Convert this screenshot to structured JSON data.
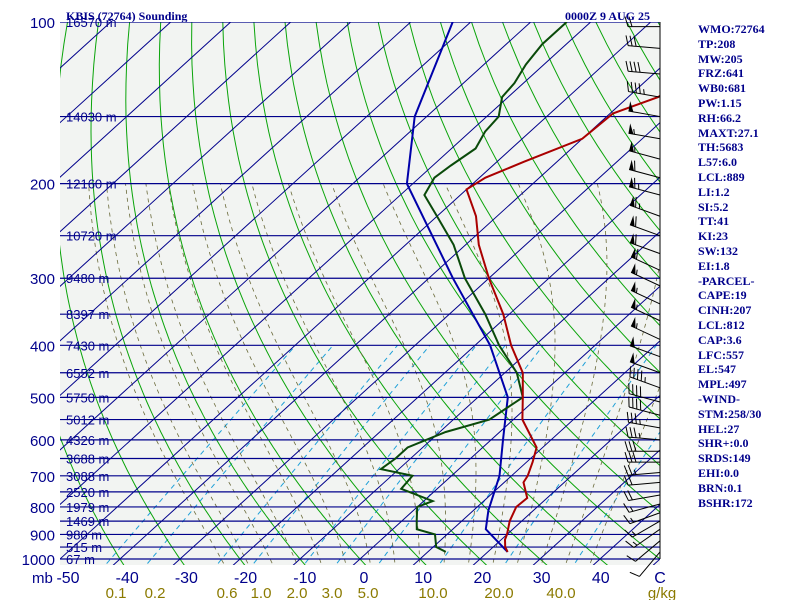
{
  "header": {
    "station": "KBIS (72764) Sounding",
    "time": "0000Z  9 AUG 25"
  },
  "indices": [
    "WMO:72764",
    "TP:208",
    "MW:205",
    "FRZ:641",
    "WB0:681",
    "PW:1.15",
    "RH:66.2",
    "MAXT:27.1",
    "TH:5683",
    "L57:6.0",
    "LCL:889",
    "LI:1.2",
    "SI:5.2",
    "TT:41",
    "KI:23",
    "SW:132",
    "EI:1.8",
    "-PARCEL-",
    "CAPE:19",
    "CINH:207",
    "LCL:812",
    "CAP:3.6",
    "LFC:557",
    "EL:547",
    "MPL:497",
    "-WIND-",
    "STM:258/30",
    "HEL:27",
    "SHR+:0.0",
    "SRDS:149",
    "EHI:0.0",
    "BRN:0.1",
    "BSHR:172"
  ],
  "colors": {
    "background": "#f2f4f2",
    "isobar": "#00008b",
    "isotherm": "#00008b",
    "dry_adiabat": "#0aa40a",
    "moist_adiabat": "#6a6a3a",
    "mixing_ratio": "#1fa0d8",
    "temperature": "#aa0000",
    "dewpoint": "#0a4a0a",
    "parcel": "#0000aa",
    "label_blue": "#00008b",
    "label_gold": "#8b7a00"
  },
  "chart_data": {
    "type": "skew-t",
    "ylabel": "mb",
    "xlabel": "",
    "y_scale": "log",
    "ylim": [
      1000,
      100
    ],
    "xlim": [
      -50,
      50
    ],
    "pressure_ticks": [
      100,
      200,
      300,
      400,
      500,
      600,
      700,
      800,
      900,
      1000
    ],
    "temperature_ticks": [
      "-50",
      "-40",
      "-30",
      "-20",
      "-10",
      "0",
      "10",
      "20",
      "30",
      "40",
      "C"
    ],
    "mixing_ratio_ticks": [
      "0.1",
      "0.2",
      "0.6",
      "1.0",
      "2.0",
      "3.0",
      "5.0",
      "10.0",
      "20.0",
      "40.0",
      "g/kg"
    ],
    "height_labels": [
      {
        "p": 100,
        "label": "16570 m"
      },
      {
        "p": 150,
        "label": "14030 m"
      },
      {
        "p": 200,
        "label": "12160 m"
      },
      {
        "p": 250,
        "label": "10720 m"
      },
      {
        "p": 300,
        "label": "9480 m"
      },
      {
        "p": 350,
        "label": "8397 m"
      },
      {
        "p": 400,
        "label": "7430 m"
      },
      {
        "p": 450,
        "label": "6552 m"
      },
      {
        "p": 500,
        "label": "5750 m"
      },
      {
        "p": 550,
        "label": "5012 m"
      },
      {
        "p": 600,
        "label": "4326 m"
      },
      {
        "p": 650,
        "label": "3688 m"
      },
      {
        "p": 700,
        "label": "3088 m"
      },
      {
        "p": 750,
        "label": "2520 m"
      },
      {
        "p": 800,
        "label": "1979 m"
      },
      {
        "p": 850,
        "label": "1469 m"
      },
      {
        "p": 900,
        "label": "980 m"
      },
      {
        "p": 950,
        "label": "515 m"
      },
      {
        "p": 1000,
        "label": "67 m"
      }
    ],
    "temperature_profile": [
      [
        970,
        23.3
      ],
      [
        950,
        22.0
      ],
      [
        920,
        20.6
      ],
      [
        900,
        20.0
      ],
      [
        850,
        18.0
      ],
      [
        800,
        16.5
      ],
      [
        770,
        16.7
      ],
      [
        720,
        13.2
      ],
      [
        700,
        12.7
      ],
      [
        660,
        11.0
      ],
      [
        620,
        9.0
      ],
      [
        550,
        1.5
      ],
      [
        500,
        -2.5
      ],
      [
        450,
        -7.0
      ],
      [
        400,
        -14.0
      ],
      [
        350,
        -21.0
      ],
      [
        300,
        -30.0
      ],
      [
        260,
        -37.8
      ],
      [
        230,
        -43.5
      ],
      [
        205,
        -50.0
      ],
      [
        195,
        -49.0
      ],
      [
        182,
        -45.5
      ],
      [
        165,
        -40.0
      ],
      [
        148,
        -39.5
      ],
      [
        138,
        -35.0
      ],
      [
        134,
        -34.5
      ],
      [
        130,
        -35.0
      ],
      [
        122,
        -32.5
      ],
      [
        115,
        -30.0
      ],
      [
        106,
        -27.0
      ],
      [
        100,
        -24.5
      ]
    ],
    "dewpoint_profile": [
      [
        970,
        13.0
      ],
      [
        950,
        10.5
      ],
      [
        900,
        8.0
      ],
      [
        880,
        4.0
      ],
      [
        850,
        2.5
      ],
      [
        800,
        0.0
      ],
      [
        780,
        1.5
      ],
      [
        740,
        -6.0
      ],
      [
        700,
        -6.5
      ],
      [
        680,
        -13.0
      ],
      [
        650,
        -12.5
      ],
      [
        620,
        -12.5
      ],
      [
        580,
        -9.0
      ],
      [
        550,
        -4.0
      ],
      [
        500,
        -2.5
      ],
      [
        450,
        -8.0
      ],
      [
        400,
        -16.0
      ],
      [
        350,
        -24.0
      ],
      [
        300,
        -34.0
      ],
      [
        260,
        -42.0
      ],
      [
        230,
        -50.0
      ],
      [
        210,
        -56.0
      ],
      [
        195,
        -57.5
      ],
      [
        185,
        -57.0
      ],
      [
        172,
        -56.0
      ],
      [
        160,
        -57.5
      ],
      [
        150,
        -58.0
      ],
      [
        138,
        -61.0
      ],
      [
        130,
        -61.5
      ],
      [
        120,
        -63.0
      ],
      [
        110,
        -64.0
      ],
      [
        100,
        -64.0
      ]
    ],
    "parcel_profile": [
      [
        970,
        23.3
      ],
      [
        880,
        15.5
      ],
      [
        812,
        12.5
      ],
      [
        700,
        8.0
      ],
      [
        600,
        2.0
      ],
      [
        500,
        -5.0
      ],
      [
        400,
        -17.5
      ],
      [
        300,
        -36.0
      ],
      [
        200,
        -61.0
      ],
      [
        150,
        -72.0
      ],
      [
        100,
        -83.0
      ]
    ],
    "wind_barbs": [
      {
        "p": 970,
        "dir": 220,
        "spd": 10
      },
      {
        "p": 925,
        "dir": 230,
        "spd": 10
      },
      {
        "p": 880,
        "dir": 235,
        "spd": 15
      },
      {
        "p": 850,
        "dir": 240,
        "spd": 15
      },
      {
        "p": 820,
        "dir": 250,
        "spd": 15
      },
      {
        "p": 790,
        "dir": 255,
        "spd": 15
      },
      {
        "p": 760,
        "dir": 260,
        "spd": 20
      },
      {
        "p": 720,
        "dir": 265,
        "spd": 20
      },
      {
        "p": 690,
        "dir": 265,
        "spd": 25
      },
      {
        "p": 660,
        "dir": 270,
        "spd": 30
      },
      {
        "p": 630,
        "dir": 270,
        "spd": 30
      },
      {
        "p": 600,
        "dir": 275,
        "spd": 35
      },
      {
        "p": 570,
        "dir": 280,
        "spd": 35
      },
      {
        "p": 540,
        "dir": 285,
        "spd": 40
      },
      {
        "p": 510,
        "dir": 285,
        "spd": 40
      },
      {
        "p": 480,
        "dir": 290,
        "spd": 45
      },
      {
        "p": 450,
        "dir": 290,
        "spd": 50
      },
      {
        "p": 420,
        "dir": 290,
        "spd": 50
      },
      {
        "p": 390,
        "dir": 295,
        "spd": 55
      },
      {
        "p": 360,
        "dir": 295,
        "spd": 55
      },
      {
        "p": 335,
        "dir": 295,
        "spd": 55
      },
      {
        "p": 310,
        "dir": 295,
        "spd": 55
      },
      {
        "p": 290,
        "dir": 295,
        "spd": 60
      },
      {
        "p": 270,
        "dir": 290,
        "spd": 60
      },
      {
        "p": 250,
        "dir": 290,
        "spd": 60
      },
      {
        "p": 230,
        "dir": 290,
        "spd": 65
      },
      {
        "p": 210,
        "dir": 285,
        "spd": 65
      },
      {
        "p": 195,
        "dir": 285,
        "spd": 60
      },
      {
        "p": 180,
        "dir": 285,
        "spd": 55
      },
      {
        "p": 165,
        "dir": 280,
        "spd": 55
      },
      {
        "p": 150,
        "dir": 280,
        "spd": 50
      },
      {
        "p": 138,
        "dir": 280,
        "spd": 45
      },
      {
        "p": 125,
        "dir": 275,
        "spd": 40
      },
      {
        "p": 112,
        "dir": 275,
        "spd": 30
      },
      {
        "p": 102,
        "dir": 270,
        "spd": 20
      }
    ]
  }
}
